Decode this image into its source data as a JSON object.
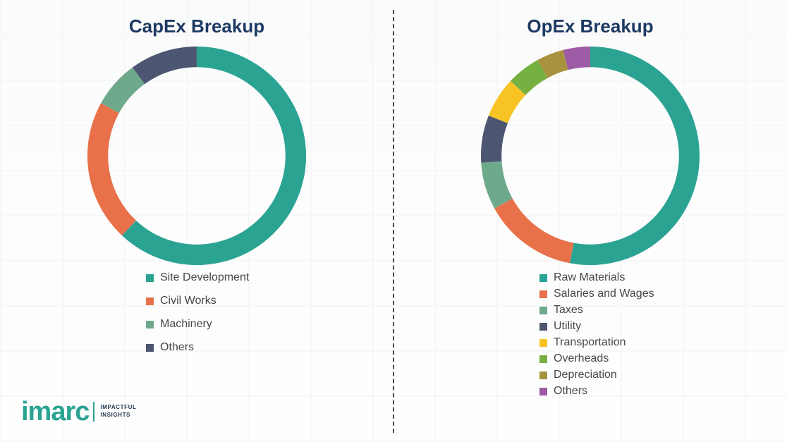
{
  "chart_data": [
    {
      "type": "pie",
      "subtype": "donut",
      "title": "CapEx Breakup",
      "labels": [
        "Site Development",
        "Civil Works",
        "Machinery",
        "Others"
      ],
      "values": [
        62,
        21,
        7,
        10
      ],
      "colors": [
        "#2BA393",
        "#E8714A",
        "#6FA98C",
        "#4D5670"
      ],
      "legend_position": "bottom-left",
      "start_angle_deg": 0,
      "direction": "clockwise"
    },
    {
      "type": "pie",
      "subtype": "donut",
      "title": "OpEx Breakup",
      "labels": [
        "Raw Materials",
        "Salaries and Wages",
        "Taxes",
        "Utility",
        "Transportation",
        "Overheads",
        "Depreciation",
        "Others"
      ],
      "values": [
        53,
        14,
        7,
        7,
        6,
        5,
        4,
        4
      ],
      "colors": [
        "#2BA393",
        "#E8714A",
        "#6FA98C",
        "#4D5670",
        "#F7C325",
        "#76B041",
        "#A8913F",
        "#9D5BA5"
      ],
      "legend_position": "bottom-left",
      "start_angle_deg": 0,
      "direction": "clockwise"
    }
  ],
  "divider": {
    "style": "vertical-dashed"
  },
  "logo": {
    "brand": "imarc",
    "tagline": [
      "IMPACTFUL",
      "INSIGHTS"
    ]
  }
}
